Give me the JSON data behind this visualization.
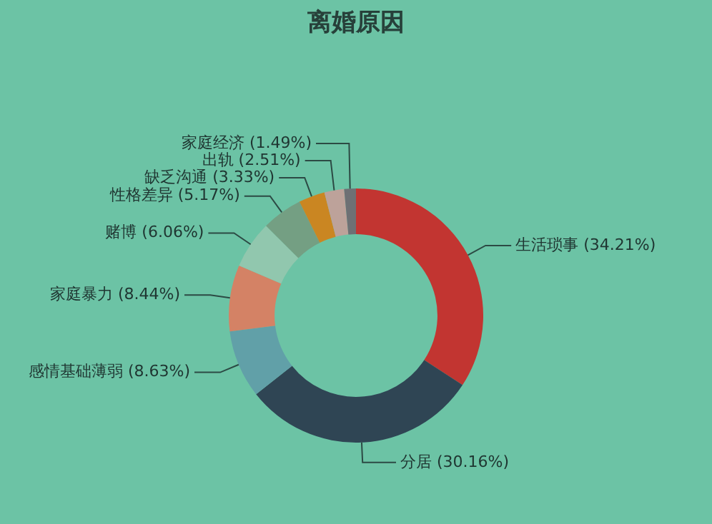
{
  "chart_data": {
    "type": "donut",
    "title": "离婚原因",
    "categories": [
      "生活琐事",
      "分居",
      "感情基础薄弱",
      "家庭暴力",
      "赌博",
      "性格差异",
      "缺乏沟通",
      "出轨",
      "家庭经济"
    ],
    "values": [
      34.21,
      30.16,
      8.63,
      8.44,
      6.06,
      5.17,
      3.33,
      2.51,
      1.49
    ],
    "value_labels": [
      "(34.21%)",
      "(30.16%)",
      "(8.63%)",
      "(8.44%)",
      "(6.06%)",
      "(5.17%)",
      "(3.33%)",
      "(2.51%)",
      "(1.49%)"
    ],
    "colors": [
      "#c23531",
      "#2f4554",
      "#61a0a8",
      "#d48265",
      "#91c7ae",
      "#749f83",
      "#ca8622",
      "#bda29a",
      "#6e7074"
    ],
    "legend": false
  }
}
